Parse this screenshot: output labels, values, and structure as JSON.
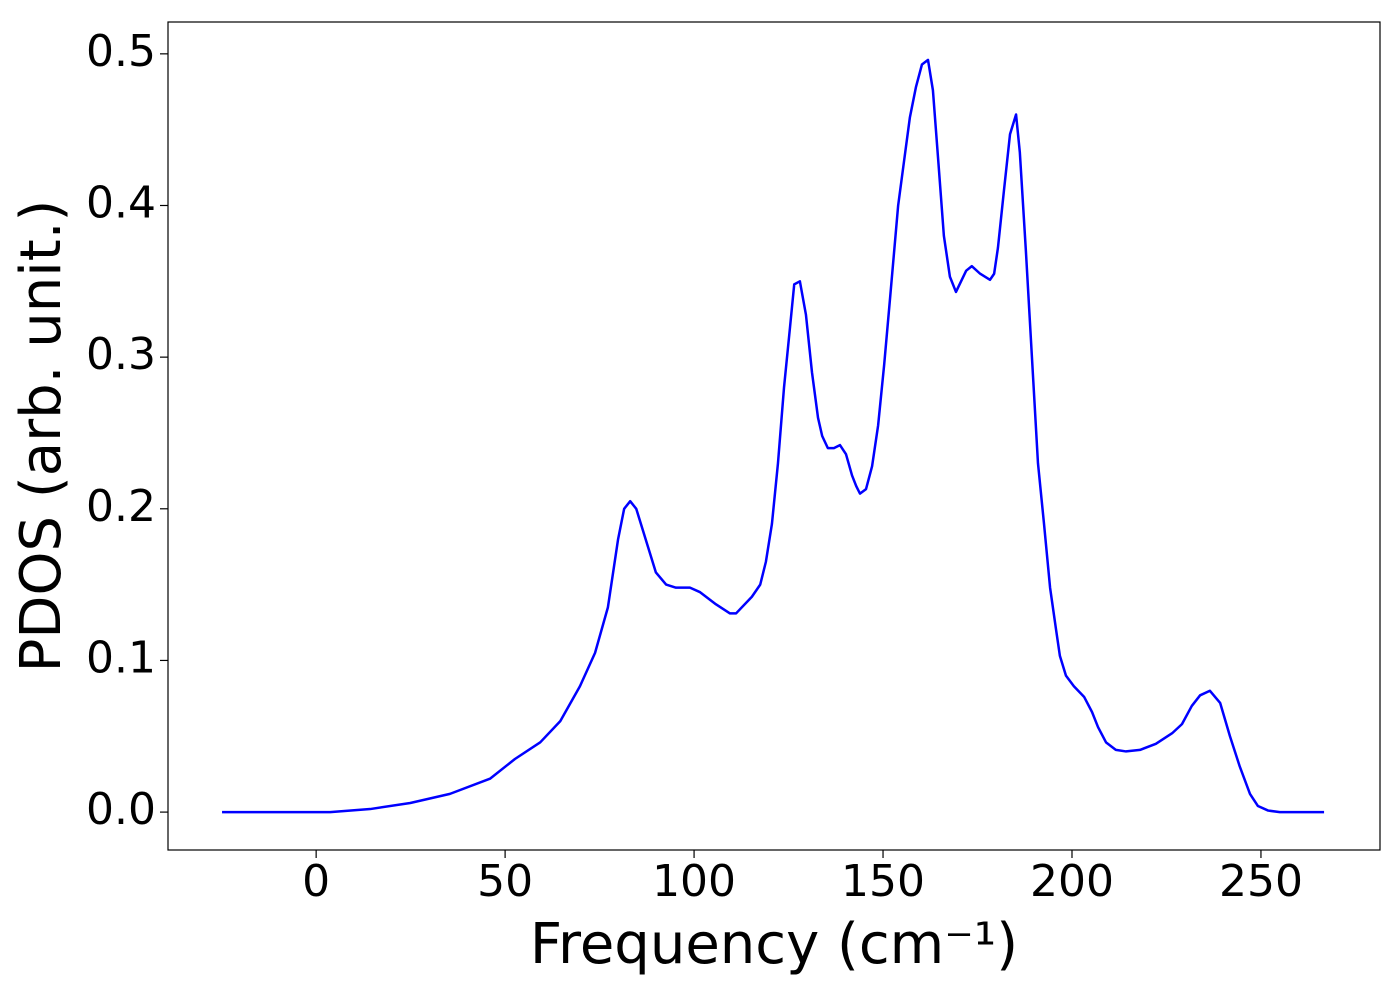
{
  "chart_data": {
    "type": "line",
    "xlabel": "Frequency (cm⁻¹)",
    "ylabel": "PDOS (arb. unit.)",
    "x": [
      -24.9,
      3.7,
      14.3,
      24.9,
      35.4,
      46,
      52.6,
      59.3,
      64.6,
      69.8,
      73.8,
      77.2,
      79.9,
      81.5,
      83.1,
      84.7,
      87.8,
      89.9,
      92.6,
      95.2,
      98.9,
      101.6,
      105.8,
      109.5,
      111.1,
      115.3,
      117.5,
      119,
      120.6,
      122.2,
      123.8,
      125.4,
      126.5,
      128,
      129.6,
      131.2,
      132.8,
      133.9,
      135.4,
      137,
      138.6,
      140.2,
      141.8,
      142.9,
      143.9,
      145.5,
      147.1,
      148.7,
      150.3,
      151.9,
      154,
      155.6,
      157.1,
      158.7,
      160.3,
      161.9,
      163.2,
      164.6,
      166.1,
      167.7,
      169.3,
      172,
      173.5,
      175.7,
      178.3,
      179.4,
      180.4,
      182,
      183.6,
      185.2,
      186.2,
      187.8,
      189.4,
      191,
      192.6,
      194.2,
      195.8,
      196.8,
      198.4,
      200.5,
      203.2,
      205.3,
      206.9,
      209,
      211.6,
      214.3,
      218,
      222.2,
      226.5,
      229.1,
      231.7,
      233.9,
      236.5,
      239.2,
      241.8,
      244.4,
      247.1,
      249.2,
      251.9,
      255,
      266.7
    ],
    "series": [
      {
        "color": "#0000ff",
        "values": [
          0,
          0,
          0.002,
          0.006,
          0.012,
          0.022,
          0.035,
          0.046,
          0.06,
          0.083,
          0.105,
          0.135,
          0.18,
          0.2,
          0.205,
          0.2,
          0.175,
          0.158,
          0.15,
          0.148,
          0.148,
          0.145,
          0.137,
          0.131,
          0.131,
          0.142,
          0.15,
          0.165,
          0.19,
          0.23,
          0.28,
          0.32,
          0.348,
          0.35,
          0.328,
          0.29,
          0.26,
          0.248,
          0.24,
          0.24,
          0.242,
          0.236,
          0.222,
          0.215,
          0.21,
          0.213,
          0.228,
          0.255,
          0.295,
          0.34,
          0.4,
          0.43,
          0.458,
          0.478,
          0.493,
          0.496,
          0.476,
          0.43,
          0.38,
          0.353,
          0.343,
          0.357,
          0.36,
          0.355,
          0.351,
          0.355,
          0.372,
          0.41,
          0.447,
          0.46,
          0.435,
          0.37,
          0.3,
          0.23,
          0.19,
          0.148,
          0.12,
          0.103,
          0.09,
          0.083,
          0.076,
          0.066,
          0.056,
          0.046,
          0.041,
          0.04,
          0.041,
          0.045,
          0.052,
          0.058,
          0.07,
          0.077,
          0.08,
          0.072,
          0.05,
          0.03,
          0.012,
          0.004,
          0.001,
          0,
          0
        ]
      }
    ],
    "xlim": [
      -39.2,
      281.5
    ],
    "xticks": [
      0,
      50,
      100,
      150,
      200,
      250
    ],
    "ylim": [
      -0.025,
      0.521
    ],
    "yticks": [
      {
        "value": 0,
        "label": "0.0"
      },
      0.1,
      0.2,
      0.3,
      0.4,
      0.5
    ],
    "grid": false
  }
}
